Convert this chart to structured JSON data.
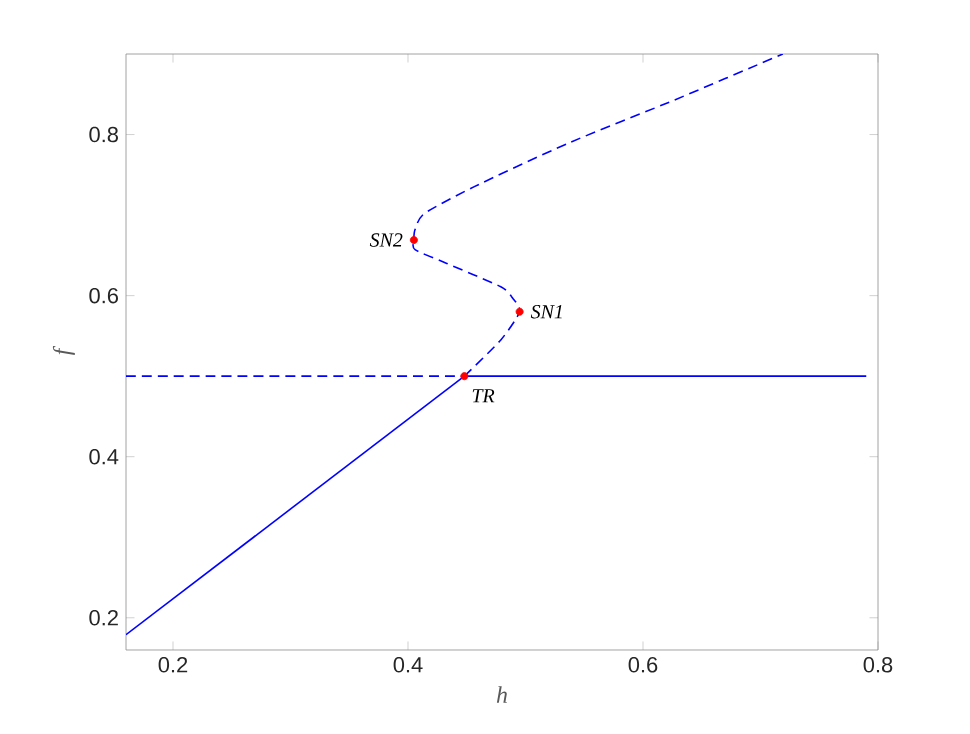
{
  "chart_data": {
    "type": "line",
    "xlabel": "h",
    "ylabel": "f",
    "xlim": [
      0.16,
      0.8
    ],
    "ylim": [
      0.16,
      0.9
    ],
    "xticks": [
      0.2,
      0.4,
      0.6,
      0.8
    ],
    "yticks": [
      0.2,
      0.4,
      0.6,
      0.8
    ],
    "grid": false,
    "marker": "none",
    "series": [
      {
        "color": "#0000ff",
        "line_style": "solid",
        "x": [
          0.16,
          0.448
        ],
        "values": [
          0.179,
          0.5
        ]
      },
      {
        "color": "#0000ff",
        "line_style": "solid",
        "x": [
          0.448,
          0.79
        ],
        "values": [
          0.5,
          0.5
        ]
      },
      {
        "color": "#0000ff",
        "line_style": "dashed",
        "x": [
          0.16,
          0.448
        ],
        "values": [
          0.5,
          0.5
        ]
      },
      {
        "color": "#0000ff",
        "line_style": "dashed",
        "x": [
          0.448,
          0.479,
          0.495,
          0.489,
          0.479,
          0.433,
          0.406,
          0.405,
          0.406,
          0.414,
          0.456,
          0.536,
          0.627,
          0.719
        ],
        "values": [
          0.5,
          0.545,
          0.58,
          0.597,
          0.611,
          0.64,
          0.657,
          0.669,
          0.682,
          0.702,
          0.735,
          0.789,
          0.843,
          0.9
        ]
      },
      {
        "type": "scatter",
        "marker": "circle",
        "color": "#ff0000",
        "x": [
          0.495,
          0.405,
          0.448
        ],
        "values": [
          0.58,
          0.669,
          0.5
        ]
      }
    ],
    "annotations": [
      {
        "text": "SN1",
        "x": 0.495,
        "y": 0.58
      },
      {
        "text": "SN2",
        "x": 0.405,
        "y": 0.669
      },
      {
        "text": "TR",
        "x": 0.448,
        "y": 0.5
      }
    ]
  }
}
